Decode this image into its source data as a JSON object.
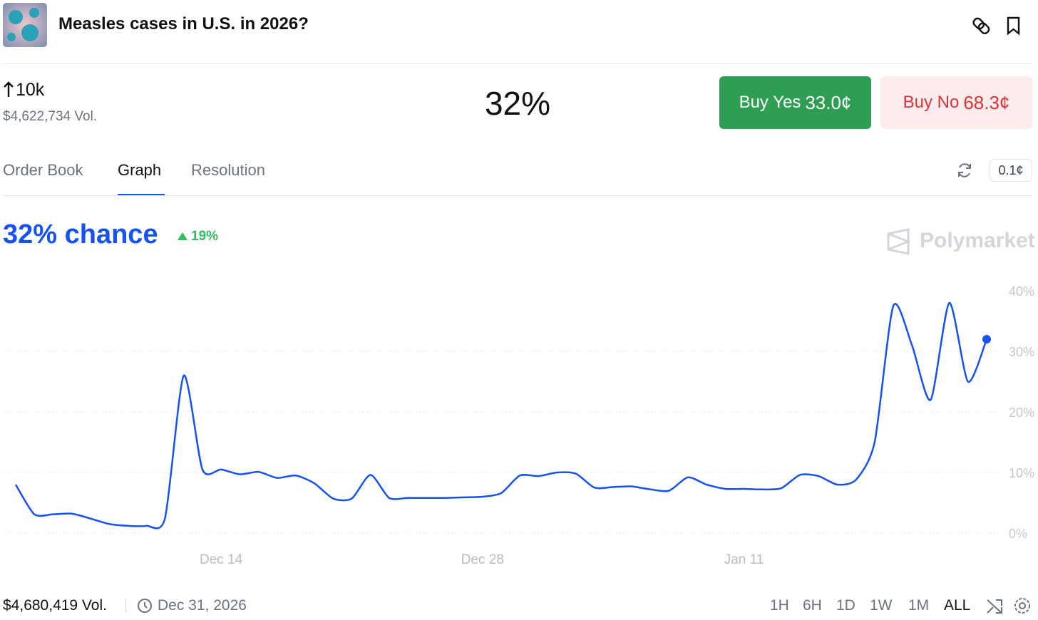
{
  "header": {
    "title": "Measles cases in U.S. in 2026?"
  },
  "market": {
    "change": "10k",
    "volume": "$4,622,734 Vol.",
    "probability": "32%",
    "buy_yes": {
      "label": "Buy Yes",
      "price": "33.0¢"
    },
    "buy_no": {
      "label": "Buy No",
      "price": "68.3¢"
    }
  },
  "tabs": [
    "Order Book",
    "Graph",
    "Resolution"
  ],
  "tick_size": "0.1¢",
  "chart_header": {
    "headline": "32% chance",
    "change": "19%",
    "watermark": "Polymarket"
  },
  "chart_data": {
    "type": "line",
    "x": [
      "Dec 3",
      "Dec 4",
      "Dec 5",
      "Dec 6",
      "Dec 7",
      "Dec 8",
      "Dec 9",
      "Dec 10",
      "Dec 11",
      "Dec 12",
      "Dec 13",
      "Dec 14",
      "Dec 15",
      "Dec 16",
      "Dec 17",
      "Dec 18",
      "Dec 19",
      "Dec 20",
      "Dec 21",
      "Dec 22",
      "Dec 23",
      "Dec 24",
      "Dec 25",
      "Dec 26",
      "Dec 27",
      "Dec 28",
      "Dec 29",
      "Dec 30",
      "Dec 31",
      "Jan 1",
      "Jan 2",
      "Jan 3",
      "Jan 4",
      "Jan 5",
      "Jan 6",
      "Jan 7",
      "Jan 8",
      "Jan 9",
      "Jan 10",
      "Jan 11",
      "Jan 12",
      "Jan 13",
      "Jan 14",
      "Jan 15",
      "Jan 16",
      "Jan 17",
      "Jan 18",
      "Jan 19",
      "Jan 20",
      "Jan 21",
      "Jan 22",
      "Jan 23",
      "Jan 24"
    ],
    "series": [
      {
        "name": "Yes",
        "color": "#1652f0",
        "values": [
          8,
          3.1,
          3.1,
          3.2,
          2.4,
          1.5,
          1.2,
          1.2,
          2.5,
          26,
          10.5,
          10.5,
          9.7,
          10.1,
          9.1,
          9.5,
          8.2,
          5.7,
          5.7,
          9.6,
          5.8,
          5.8,
          5.8,
          5.8,
          5.9,
          6.0,
          6.6,
          9.5,
          9.4,
          10.0,
          9.8,
          7.5,
          7.6,
          7.7,
          7.2,
          7.0,
          9.2,
          8.0,
          7.3,
          7.3,
          7.2,
          7.4,
          9.6,
          9.4,
          8.0,
          8.8,
          15,
          37.5,
          31,
          22,
          38,
          25,
          32
        ]
      }
    ],
    "xticks": [
      "Dec 14",
      "Dec 28",
      "Jan 11"
    ],
    "ylim": [
      0,
      40
    ],
    "yticks": [
      {
        "value": 0,
        "label": "0%"
      },
      {
        "value": 10,
        "label": "10%"
      },
      {
        "value": 20,
        "label": "20%"
      },
      {
        "value": 30,
        "label": "30%"
      },
      {
        "value": 40,
        "label": "40%"
      }
    ],
    "grid": true
  },
  "footer": {
    "volume": "$4,680,419 Vol.",
    "end_date": "Dec 31, 2026",
    "ranges": [
      "1H",
      "6H",
      "1D",
      "1W",
      "1M",
      "ALL"
    ]
  }
}
